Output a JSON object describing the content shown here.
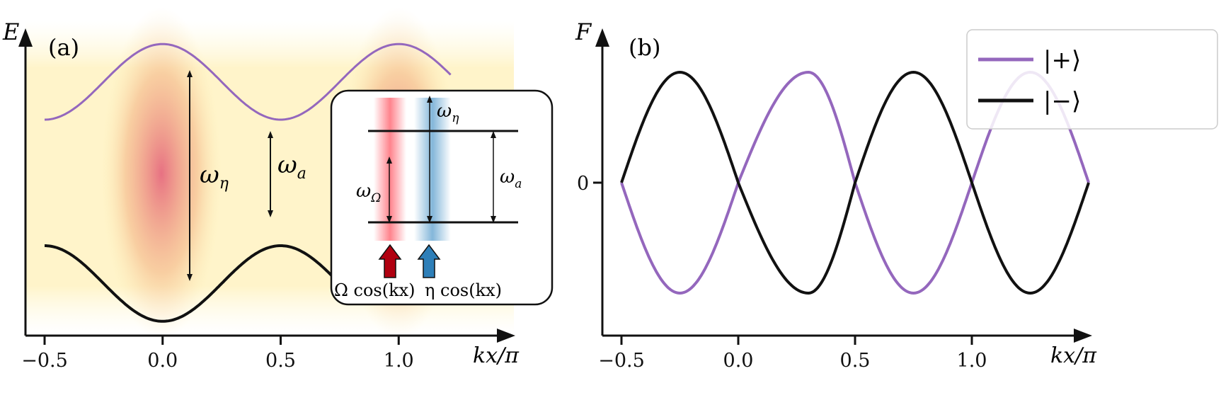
{
  "chart_data": [
    {
      "type": "line",
      "panel_label": "(a)",
      "ylabel": "E",
      "xlabel": "kx/π",
      "xticks": [
        "−0.5",
        "0.0",
        "0.5",
        "1.0"
      ],
      "xtick_values": [
        -0.5,
        0.0,
        0.5,
        1.0
      ],
      "xlim": [
        -0.58,
        1.46
      ],
      "ylim": [
        -1.3,
        1.3
      ],
      "series": [
        {
          "name": "upper band",
          "color": "#9467bd",
          "x_range": [
            -0.5,
            1.2
          ],
          "center": 0.8,
          "amplitude": 0.3,
          "form": "center + amplitude*cos(2πx)"
        },
        {
          "name": "lower band",
          "color": "#111111",
          "x_range": [
            -0.5,
            1.2
          ],
          "center": -0.8,
          "amplitude": -0.3,
          "form": "center + amplitude*cos(2πx)"
        }
      ],
      "annotations": [
        {
          "label": "ω",
          "sub": "η",
          "x": 0.13,
          "from": -1.1,
          "to": 1.1
        },
        {
          "label": "ω",
          "sub": "a",
          "x": 0.47,
          "from": -0.5,
          "to": 0.5
        }
      ],
      "background_stripes": [
        {
          "color": "#e8637a",
          "centers": [
            0.0,
            1.0
          ]
        },
        {
          "color": "#f5d75a",
          "centers": [
            0.5
          ]
        }
      ],
      "inset": {
        "levels": [
          "upper",
          "lower"
        ],
        "arrows": [
          {
            "label": "ω",
            "sub": "Ω"
          },
          {
            "label": "ω",
            "sub": "η"
          },
          {
            "label": "ω",
            "sub": "a"
          }
        ],
        "drives": [
          {
            "label": "Ω cos(kx)",
            "color": "#b00010",
            "stripe": "#ff5a66"
          },
          {
            "label": "η cos(kx)",
            "color": "#2e7fb8",
            "stripe": "#5a9ecd"
          }
        ]
      }
    },
    {
      "type": "line",
      "panel_label": "(b)",
      "ylabel": "F",
      "xlabel": "kx/π",
      "xticks": [
        "−0.5",
        "0.0",
        "0.5",
        "1.0"
      ],
      "xtick_values": [
        -0.5,
        0.0,
        0.5,
        1.0
      ],
      "yticks": [
        "0"
      ],
      "ytick_values": [
        0
      ],
      "xlim": [
        -0.59,
        1.44
      ],
      "ylim": [
        -1.25,
        1.25
      ],
      "series": [
        {
          "name": "|+⟩",
          "color": "#9467bd",
          "x_range": [
            -0.5,
            1.5
          ],
          "form": "-|sin(2.5π(x+0.5))|·sign — sawtooth-like sine, 0 at x=-0.5"
        },
        {
          "name": "|−⟩",
          "color": "#111111",
          "x_range": [
            -0.5,
            1.5
          ],
          "form": "mirror of |+⟩"
        }
      ],
      "points_plus": [
        [
          -0.5,
          0
        ],
        [
          -0.25,
          -1
        ],
        [
          0.0,
          0
        ],
        [
          0.3,
          1
        ],
        [
          0.5,
          0
        ],
        [
          0.75,
          -1
        ],
        [
          1.0,
          0
        ],
        [
          1.25,
          1
        ],
        [
          1.5,
          0
        ]
      ],
      "points_minus": [
        [
          -0.5,
          0
        ],
        [
          -0.25,
          1
        ],
        [
          0.0,
          0
        ],
        [
          0.3,
          -1
        ],
        [
          0.5,
          0
        ],
        [
          0.75,
          1
        ],
        [
          1.0,
          0
        ],
        [
          1.25,
          -1
        ],
        [
          1.5,
          0
        ]
      ],
      "legend": {
        "placement": "top-right",
        "entries": [
          "|+⟩",
          "|−⟩"
        ]
      }
    }
  ]
}
